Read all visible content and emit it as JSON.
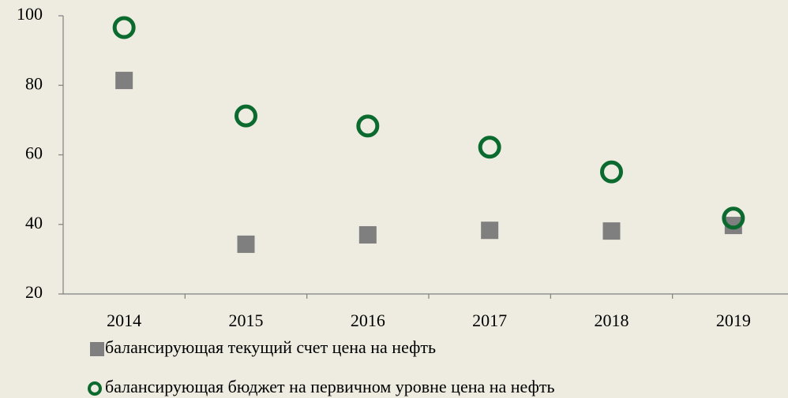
{
  "chart_data": {
    "type": "scatter",
    "categories": [
      "2014",
      "2015",
      "2016",
      "2017",
      "2018",
      "2019"
    ],
    "series": [
      {
        "name": "балансирующая текущий счет цена на нефть",
        "color": "#7f7f7f",
        "marker": "square",
        "values": [
          81.4,
          34.3,
          37,
          38.3,
          38.1,
          39.7
        ]
      },
      {
        "name": "балансирующая бюджет на первичном уровне цена на нефть",
        "color": "#0b6a2e",
        "marker": "circle",
        "values": [
          96.6,
          71.2,
          68.3,
          62.2,
          55.1,
          41.8
        ]
      }
    ],
    "ylim": [
      20,
      100
    ],
    "yticks": [
      20,
      40,
      60,
      80,
      100
    ],
    "grid": false
  }
}
